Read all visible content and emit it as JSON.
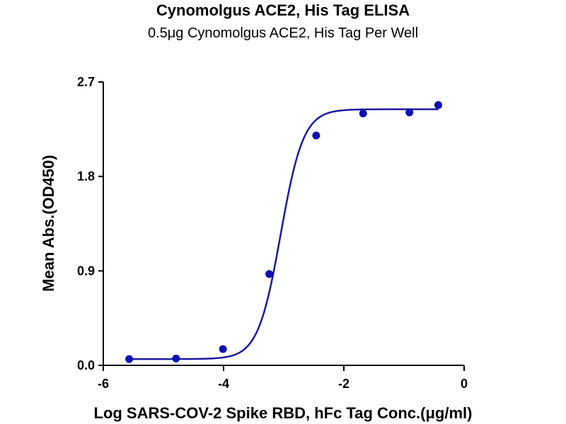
{
  "chart_data": {
    "type": "scatter",
    "title": "Cynomolgus ACE2, His Tag ELISA",
    "subtitle": "0.5μg Cynomolgus ACE2, His Tag Per Well",
    "xlabel": "Log SARS-COV-2 Spike RBD, hFc Tag Conc.(μg/ml)",
    "ylabel": "Mean Abs.(OD450)",
    "xlim": [
      -6,
      0
    ],
    "ylim": [
      0,
      2.7
    ],
    "x_ticks": [
      "-6",
      "-4",
      "-2",
      "0"
    ],
    "x_tick_values": [
      -6,
      -4,
      -2,
      0
    ],
    "y_ticks": [
      "0.0",
      "0.9",
      "1.8",
      "2.7"
    ],
    "y_tick_values": [
      0,
      0.9,
      1.8,
      2.7
    ],
    "grid": false,
    "point_color": "#1010b0",
    "curve_color": "#1a1aa0",
    "series": [
      {
        "x": [
          -5.57,
          -4.79,
          -4.01,
          -3.24,
          -2.46,
          -1.68,
          -0.91,
          -0.43
        ],
        "y": [
          0.06,
          0.065,
          0.155,
          0.87,
          2.19,
          2.4,
          2.41,
          2.48
        ]
      }
    ],
    "fit": {
      "model": "4PL",
      "bottom": 0.06,
      "top": 2.44,
      "log_ec50": -3.05,
      "hill": 2.3
    }
  }
}
